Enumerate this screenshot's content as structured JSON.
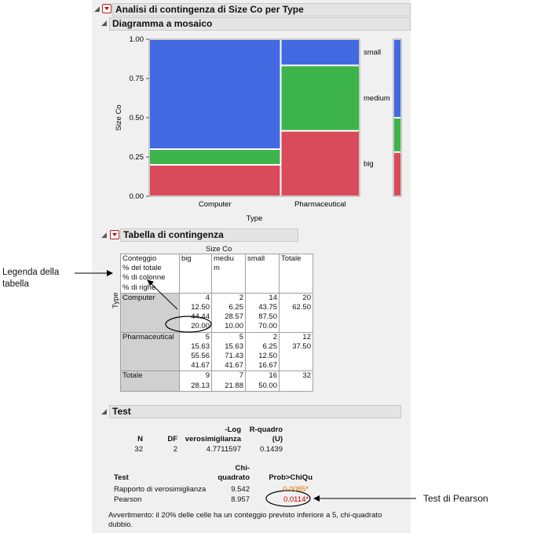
{
  "main_title": "Analisi di contingenza di Size Co per Type",
  "mosaic": {
    "title": "Diagramma a mosaico",
    "ylabel": "Size Co",
    "xlabel": "Type",
    "yticks": [
      "1.00",
      "0.75",
      "0.50",
      "0.25",
      "0.00"
    ],
    "categories": [
      "Computer",
      "Pharmaceutical"
    ],
    "right_labels": [
      "small",
      "medium",
      "big"
    ],
    "colors": {
      "small": "#4169e1",
      "medium": "#3cb44b",
      "big": "#d94a5a"
    }
  },
  "chart_data": {
    "type": "mosaic",
    "categories": [
      "Computer",
      "Pharmaceutical"
    ],
    "column_widths": [
      0.625,
      0.375
    ],
    "series": [
      {
        "name": "big",
        "values": [
          0.2,
          0.4167
        ]
      },
      {
        "name": "medium",
        "values": [
          0.1,
          0.4167
        ]
      },
      {
        "name": "small",
        "values": [
          0.7,
          0.1667
        ]
      }
    ],
    "marginal": {
      "big": 0.2813,
      "medium": 0.2188,
      "small": 0.5
    },
    "ylim": [
      0,
      1
    ],
    "xlabel": "Type",
    "ylabel": "Size Co"
  },
  "contingency": {
    "title": "Tabella di contingenza",
    "col_var": "Size Co",
    "row_var": "Type",
    "legend": [
      "Conteggio",
      "% del totale",
      "% di colonne",
      "% di righe"
    ],
    "headers": [
      "big",
      "mediu\nm",
      "small",
      "Totale"
    ],
    "rows": [
      {
        "label": "Computer",
        "cells": [
          [
            "4",
            "12.50",
            "44.44",
            "20.00"
          ],
          [
            "2",
            "6.25",
            "28.57",
            "10.00"
          ],
          [
            "14",
            "43.75",
            "87.50",
            "70.00"
          ]
        ],
        "total": [
          "20",
          "62.50"
        ]
      },
      {
        "label": "Pharmaceutical",
        "cells": [
          [
            "5",
            "15.63",
            "55.56",
            "41.67"
          ],
          [
            "5",
            "15.63",
            "71.43",
            "41.67"
          ],
          [
            "2",
            "6.25",
            "12.50",
            "16.67"
          ]
        ],
        "total": [
          "12",
          "37.50"
        ]
      }
    ],
    "totals": {
      "label": "Totale",
      "cells": [
        [
          "9",
          "28.13"
        ],
        [
          "7",
          "21.88"
        ],
        [
          "16",
          "50.00"
        ]
      ],
      "grand": "32"
    }
  },
  "test": {
    "title": "Test",
    "summary_headers": [
      "N",
      "DF",
      "-Log\nverosimiglianza",
      "R-quadro\n(U)"
    ],
    "summary_values": [
      "32",
      "2",
      "4.7711597",
      "0.1439"
    ],
    "tests_headers": [
      "Test",
      "Chi-\nquadrato",
      "Prob>ChiQu"
    ],
    "tests": [
      {
        "name": "Rapporto di verosimiglianza",
        "chisq": "9.542",
        "prob": "0.0085*"
      },
      {
        "name": "Pearson",
        "chisq": "8.957",
        "prob": "0.0114*"
      }
    ],
    "warning": "Avvertimento: il 20% delle celle ha un conteggio previsto inferiore a 5, chi-quadrato dubbio."
  },
  "annotations": {
    "legend_label": "Legenda della tabella",
    "pearson_label": "Test di Pearson"
  }
}
